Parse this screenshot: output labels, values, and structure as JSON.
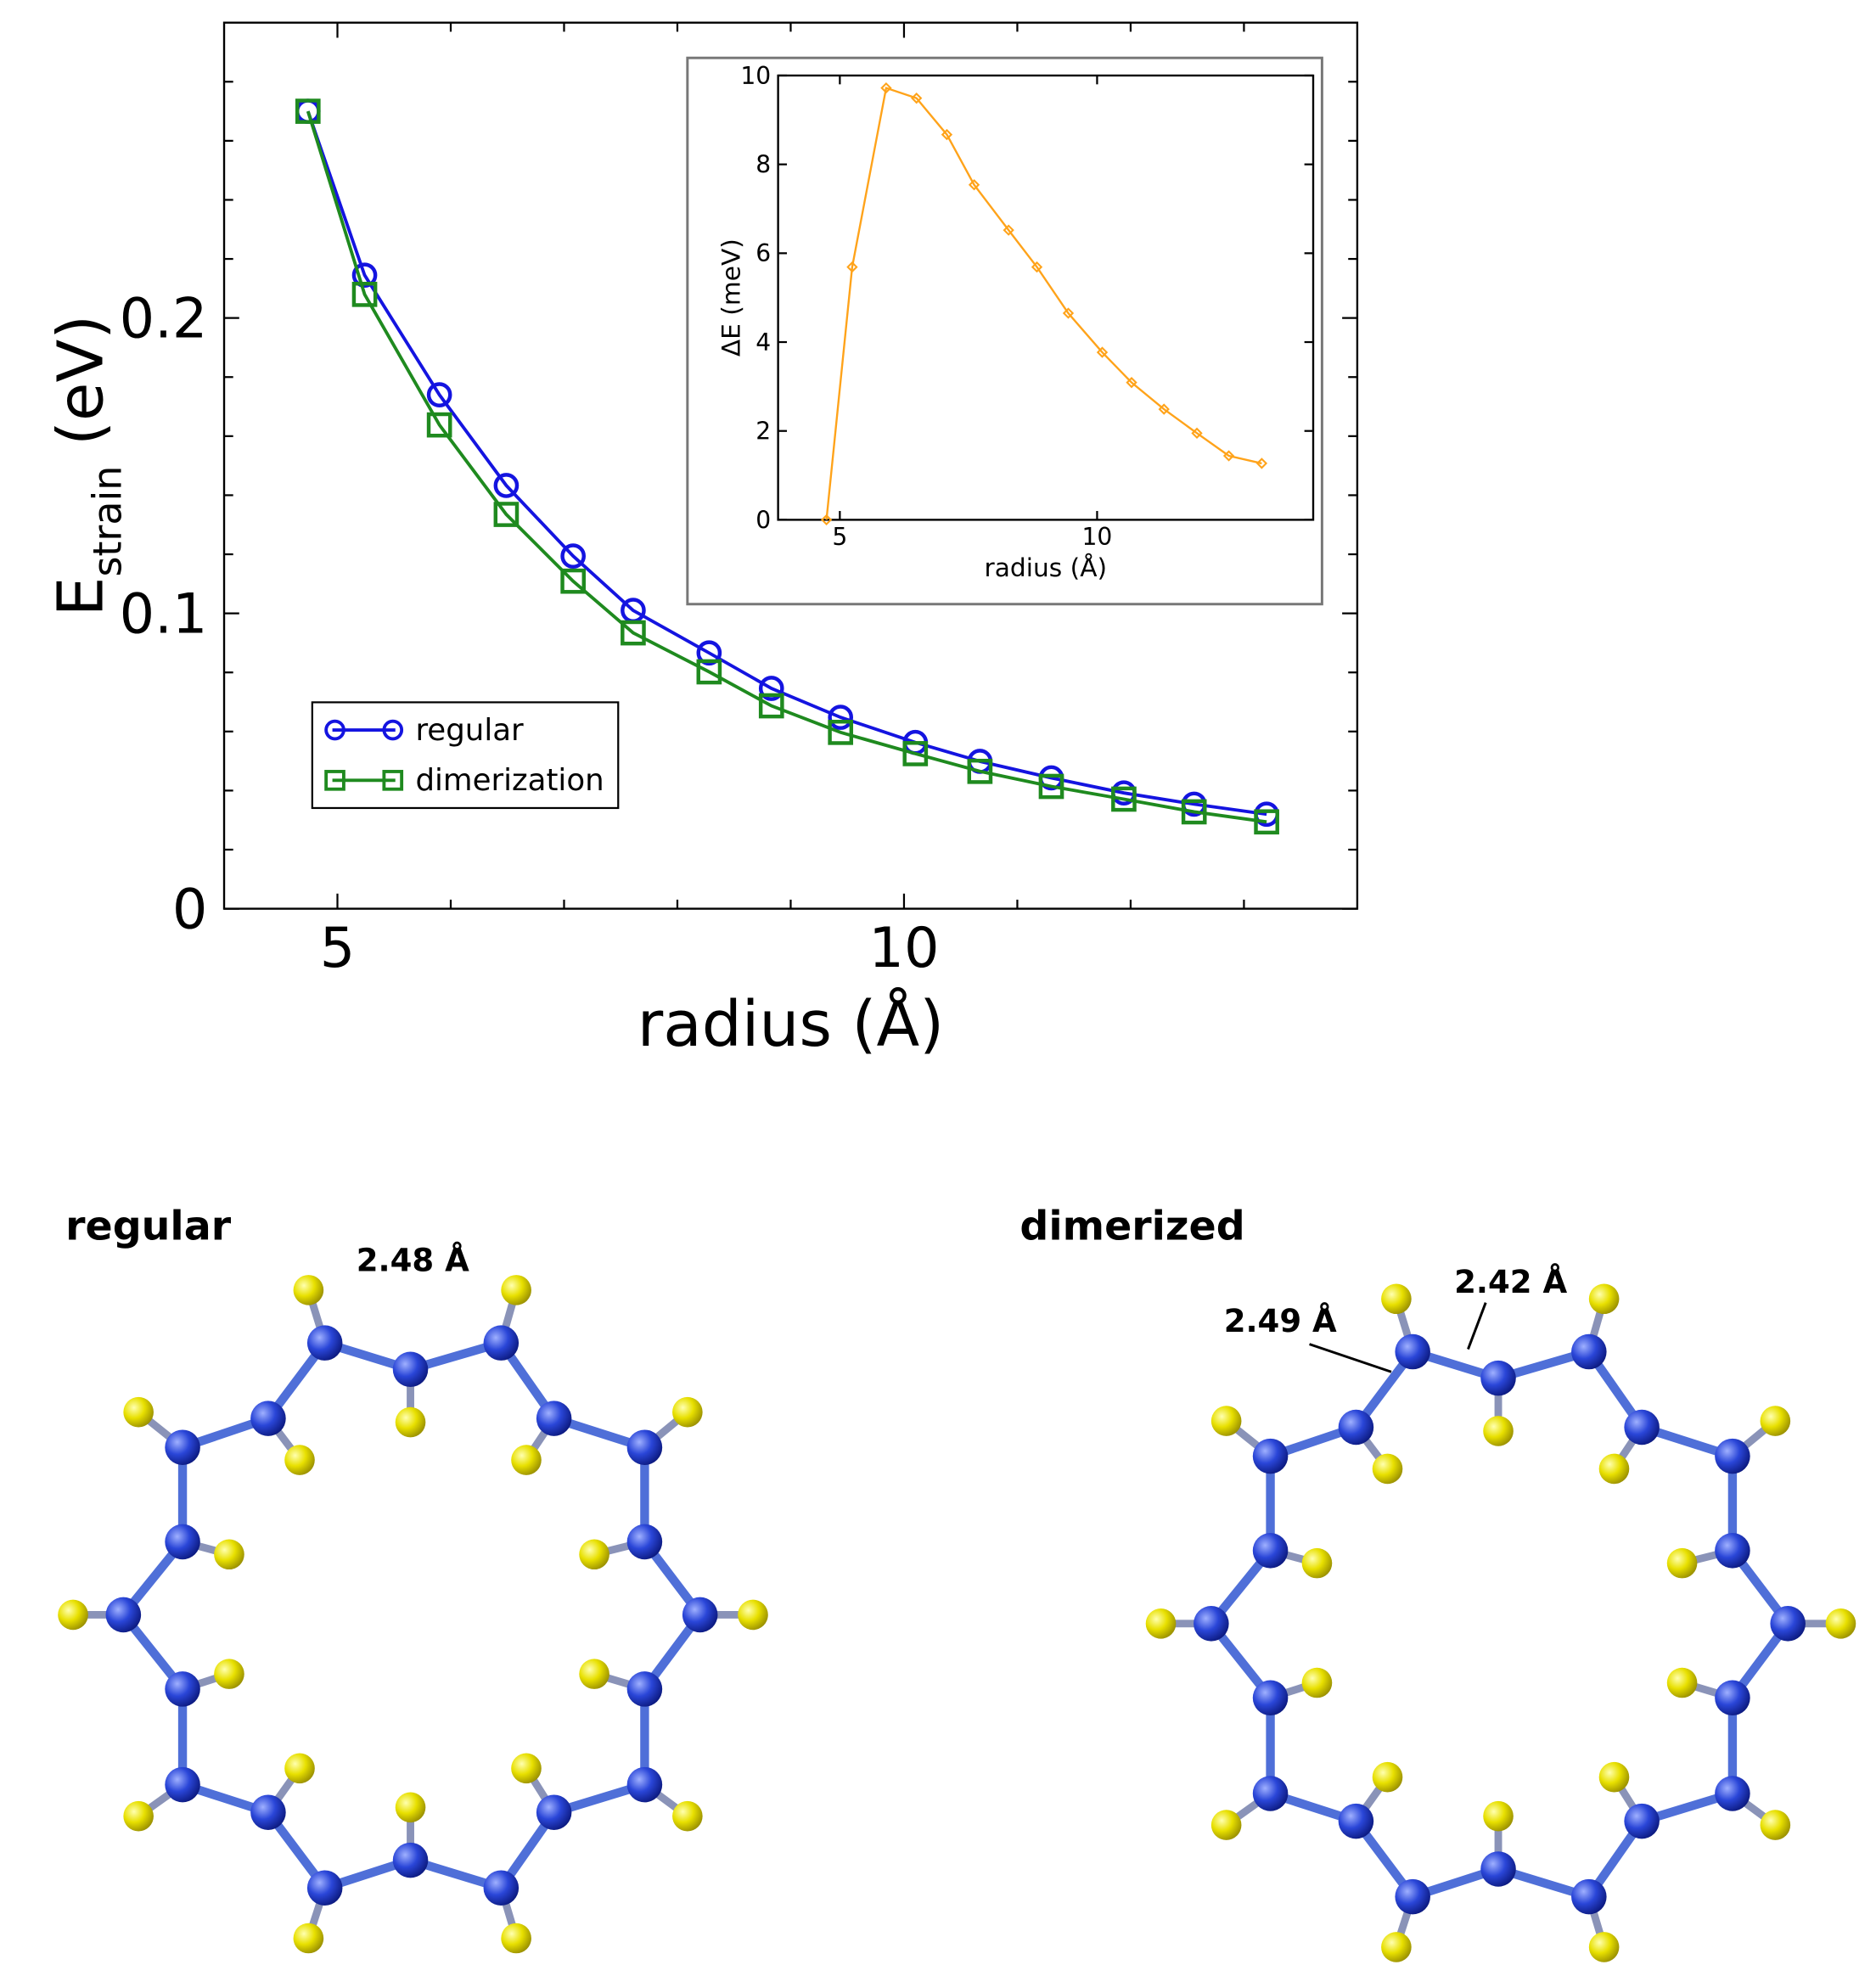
{
  "chart_data": [
    {
      "type": "line",
      "xlabel": "radius (Å)",
      "ylabel": "E",
      "ylabel_sub": "strain",
      "ylabel_unit": "(eV)",
      "x": [
        4.74,
        5.24,
        5.9,
        6.49,
        7.08,
        7.61,
        8.28,
        8.83,
        9.44,
        10.1,
        10.67,
        11.3,
        11.94,
        12.56,
        13.2
      ],
      "series": [
        {
          "name": "regular",
          "color": "#1414e0",
          "marker": "circle",
          "values": [
            0.27,
            0.2145,
            0.174,
            0.1433,
            0.1194,
            0.101,
            0.0866,
            0.0746,
            0.0648,
            0.0563,
            0.0499,
            0.0443,
            0.0392,
            0.0354,
            0.032
          ]
        },
        {
          "name": "dimerization",
          "color": "#1f8a1f",
          "marker": "square",
          "values": [
            0.27,
            0.208,
            0.1638,
            0.1335,
            0.1109,
            0.0934,
            0.0802,
            0.0687,
            0.0597,
            0.0525,
            0.0465,
            0.0414,
            0.0371,
            0.0328,
            0.0294
          ]
        }
      ],
      "xlim": [
        4,
        14
      ],
      "xticks": [
        5,
        10
      ],
      "xminorticks": [
        6,
        7,
        8,
        9,
        11,
        12,
        13
      ],
      "ylim": [
        0,
        0.3
      ],
      "yticks": [
        0,
        0.1,
        0.2
      ],
      "yminorticks": [
        0.02,
        0.04,
        0.06,
        0.08,
        0.12,
        0.14,
        0.16,
        0.18,
        0.22,
        0.24,
        0.26,
        0.28
      ],
      "legend": "lower left"
    },
    {
      "type": "line",
      "xlabel": "radius (Å)",
      "ylabel": "ΔE (meV)",
      "x": [
        4.74,
        5.24,
        5.9,
        6.49,
        7.08,
        7.61,
        8.28,
        8.83,
        9.44,
        10.1,
        10.67,
        11.3,
        11.94,
        12.56,
        13.2
      ],
      "series": [
        {
          "color": "#ffa31a",
          "marker": "diamond",
          "values": [
            0,
            5.69,
            9.72,
            9.49,
            8.67,
            7.54,
            6.52,
            5.69,
            4.65,
            3.77,
            3.09,
            2.49,
            1.95,
            1.44,
            1.27
          ]
        }
      ],
      "xlim": [
        3.8,
        14.2
      ],
      "xticks": [
        5,
        10
      ],
      "ylim": [
        0,
        10
      ],
      "yticks": [
        0,
        2,
        4,
        6,
        8,
        10
      ]
    }
  ],
  "diagrams": [
    {
      "title": "regular",
      "labels": [
        "2.48 Å"
      ]
    },
    {
      "title": "dimerized",
      "labels": [
        "2.49 Å",
        "2.42 Å"
      ]
    }
  ]
}
